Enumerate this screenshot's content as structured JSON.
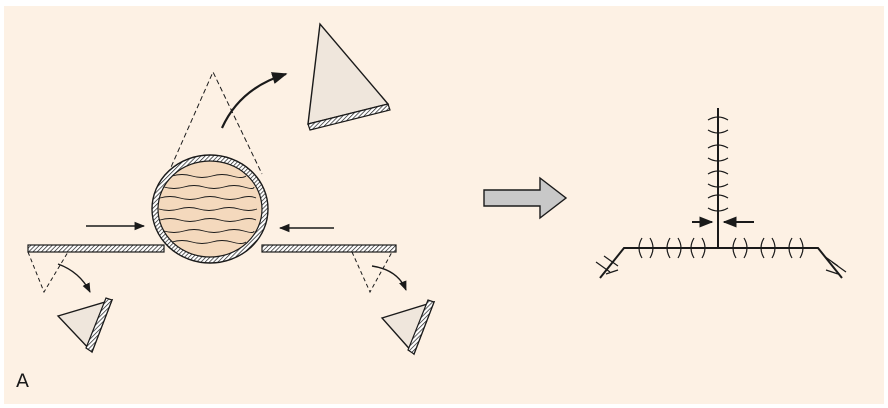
{
  "figure": {
    "panel_label": "A",
    "colors": {
      "background": "#fdf1e4",
      "fill_flap": "#efe6dc",
      "fill_mass": "#f4d9bd",
      "ink": "#1a1a1a"
    }
  }
}
